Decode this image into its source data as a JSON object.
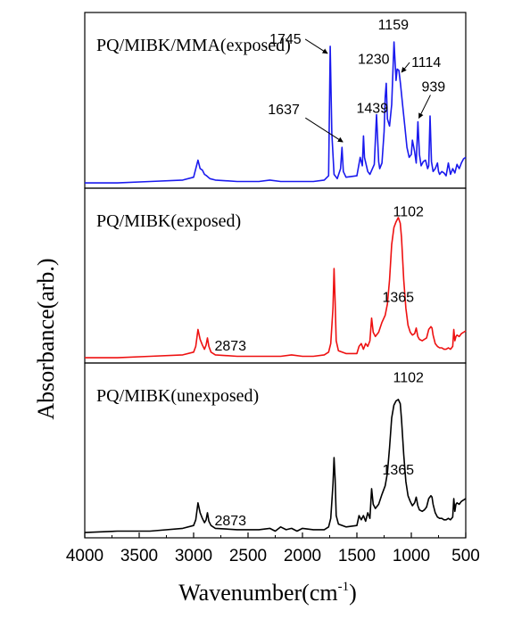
{
  "chart_data": {
    "type": "line",
    "xlabel": "Wavenumber(cm",
    "xlabel_sup": "-1",
    "xlabel_end": ")",
    "ylabel": "Absorbance(arb.)",
    "xlim": [
      4000,
      500
    ],
    "x_reversed": true,
    "x_ticks": [
      4000,
      3500,
      3000,
      2500,
      2000,
      1500,
      1000,
      500
    ],
    "stacked": true,
    "grid": false,
    "panels": [
      {
        "label": "PQ/MIBK/MMA(exposed)",
        "color": "#1a1aee",
        "ylim": [
          0,
          1
        ],
        "x": [
          4000,
          3700,
          3400,
          3100,
          3000,
          2990,
          2960,
          2940,
          2920,
          2900,
          2880,
          2850,
          2800,
          2600,
          2400,
          2300,
          2200,
          2100,
          2000,
          1900,
          1800,
          1760,
          1745,
          1730,
          1710,
          1680,
          1650,
          1637,
          1625,
          1600,
          1500,
          1470,
          1450,
          1439,
          1430,
          1400,
          1380,
          1340,
          1320,
          1300,
          1290,
          1270,
          1250,
          1240,
          1230,
          1220,
          1200,
          1180,
          1159,
          1140,
          1130,
          1114,
          1100,
          1080,
          1060,
          1040,
          1020,
          1000,
          990,
          970,
          955,
          939,
          925,
          910,
          890,
          870,
          850,
          840,
          828,
          815,
          800,
          780,
          760,
          750,
          740,
          720,
          700,
          680,
          660,
          640,
          620,
          600,
          580,
          560,
          540,
          520,
          500
        ],
        "y": [
          0.0,
          0.0,
          0.01,
          0.02,
          0.04,
          0.07,
          0.16,
          0.1,
          0.09,
          0.06,
          0.05,
          0.03,
          0.02,
          0.01,
          0.01,
          0.02,
          0.01,
          0.01,
          0.01,
          0.01,
          0.02,
          0.05,
          0.96,
          0.35,
          0.06,
          0.03,
          0.1,
          0.25,
          0.08,
          0.04,
          0.05,
          0.18,
          0.12,
          0.33,
          0.18,
          0.08,
          0.06,
          0.13,
          0.48,
          0.15,
          0.1,
          0.14,
          0.36,
          0.6,
          0.7,
          0.45,
          0.4,
          0.55,
          0.99,
          0.72,
          0.8,
          0.79,
          0.7,
          0.55,
          0.4,
          0.25,
          0.18,
          0.2,
          0.3,
          0.22,
          0.14,
          0.43,
          0.2,
          0.12,
          0.15,
          0.16,
          0.1,
          0.12,
          0.47,
          0.15,
          0.08,
          0.1,
          0.14,
          0.08,
          0.06,
          0.08,
          0.07,
          0.05,
          0.14,
          0.06,
          0.1,
          0.07,
          0.13,
          0.1,
          0.14,
          0.17,
          0.18
        ]
      },
      {
        "label": "PQ/MIBK(exposed)",
        "color": "#ee1111",
        "ylim": [
          0,
          1
        ],
        "x": [
          4000,
          3700,
          3400,
          3100,
          3000,
          2980,
          2960,
          2940,
          2920,
          2900,
          2885,
          2873,
          2860,
          2840,
          2800,
          2600,
          2400,
          2300,
          2200,
          2100,
          2000,
          1900,
          1800,
          1760,
          1740,
          1720,
          1710,
          1700,
          1690,
          1670,
          1600,
          1500,
          1480,
          1460,
          1440,
          1420,
          1400,
          1380,
          1365,
          1350,
          1330,
          1300,
          1270,
          1240,
          1220,
          1200,
          1180,
          1160,
          1140,
          1120,
          1102,
          1090,
          1070,
          1050,
          1030,
          1010,
          990,
          970,
          955,
          940,
          925,
          900,
          880,
          860,
          840,
          820,
          810,
          800,
          780,
          760,
          740,
          720,
          700,
          680,
          660,
          640,
          620,
          610,
          600,
          590,
          580,
          560,
          540,
          520,
          500
        ],
        "y": [
          0.0,
          0.0,
          0.01,
          0.02,
          0.04,
          0.08,
          0.2,
          0.13,
          0.09,
          0.06,
          0.09,
          0.14,
          0.08,
          0.04,
          0.02,
          0.01,
          0.01,
          0.01,
          0.01,
          0.02,
          0.01,
          0.01,
          0.02,
          0.04,
          0.1,
          0.35,
          0.63,
          0.4,
          0.12,
          0.05,
          0.03,
          0.03,
          0.08,
          0.1,
          0.06,
          0.1,
          0.08,
          0.12,
          0.28,
          0.18,
          0.15,
          0.18,
          0.25,
          0.3,
          0.38,
          0.55,
          0.8,
          0.92,
          0.96,
          0.99,
          0.95,
          0.85,
          0.55,
          0.35,
          0.23,
          0.18,
          0.16,
          0.17,
          0.21,
          0.15,
          0.13,
          0.12,
          0.13,
          0.14,
          0.2,
          0.22,
          0.21,
          0.16,
          0.1,
          0.08,
          0.07,
          0.07,
          0.06,
          0.06,
          0.07,
          0.06,
          0.08,
          0.2,
          0.12,
          0.15,
          0.16,
          0.15,
          0.17,
          0.18,
          0.19
        ]
      },
      {
        "label": "PQ/MIBK(unexposed)",
        "color": "#000000",
        "ylim": [
          0,
          1
        ],
        "x": [
          4000,
          3700,
          3400,
          3100,
          3000,
          2980,
          2960,
          2940,
          2920,
          2900,
          2885,
          2873,
          2860,
          2840,
          2800,
          2600,
          2400,
          2300,
          2250,
          2200,
          2150,
          2100,
          2050,
          2000,
          1900,
          1800,
          1760,
          1740,
          1720,
          1710,
          1700,
          1690,
          1670,
          1600,
          1500,
          1480,
          1460,
          1440,
          1420,
          1400,
          1380,
          1365,
          1350,
          1330,
          1300,
          1270,
          1240,
          1220,
          1200,
          1180,
          1160,
          1140,
          1120,
          1102,
          1090,
          1070,
          1050,
          1030,
          1010,
          990,
          970,
          955,
          940,
          925,
          900,
          880,
          860,
          840,
          820,
          810,
          800,
          780,
          760,
          740,
          720,
          700,
          680,
          660,
          640,
          620,
          610,
          600,
          590,
          580,
          560,
          540,
          520,
          500
        ],
        "y": [
          0.0,
          0.01,
          0.01,
          0.03,
          0.05,
          0.09,
          0.21,
          0.14,
          0.1,
          0.07,
          0.09,
          0.14,
          0.08,
          0.05,
          0.03,
          0.02,
          0.02,
          0.03,
          0.01,
          0.04,
          0.02,
          0.03,
          0.01,
          0.03,
          0.02,
          0.02,
          0.04,
          0.1,
          0.34,
          0.53,
          0.38,
          0.12,
          0.06,
          0.04,
          0.05,
          0.12,
          0.09,
          0.12,
          0.08,
          0.14,
          0.1,
          0.31,
          0.2,
          0.17,
          0.2,
          0.27,
          0.33,
          0.42,
          0.6,
          0.81,
          0.9,
          0.93,
          0.94,
          0.91,
          0.8,
          0.55,
          0.36,
          0.26,
          0.22,
          0.19,
          0.21,
          0.25,
          0.19,
          0.16,
          0.15,
          0.16,
          0.18,
          0.24,
          0.26,
          0.25,
          0.2,
          0.14,
          0.11,
          0.1,
          0.1,
          0.09,
          0.09,
          0.1,
          0.09,
          0.11,
          0.24,
          0.15,
          0.2,
          0.21,
          0.2,
          0.22,
          0.23,
          0.24
        ]
      }
    ],
    "annotations": [
      {
        "panel": 0,
        "text": "1745",
        "peak_x": 1745
      },
      {
        "panel": 0,
        "text": "1637",
        "peak_x": 1637
      },
      {
        "panel": 0,
        "text": "1439",
        "peak_x": 1439
      },
      {
        "panel": 0,
        "text": "1230",
        "peak_x": 1230
      },
      {
        "panel": 0,
        "text": "1159",
        "peak_x": 1159
      },
      {
        "panel": 0,
        "text": "1114",
        "peak_x": 1114
      },
      {
        "panel": 0,
        "text": "939",
        "peak_x": 939
      },
      {
        "panel": 1,
        "text": "2873",
        "peak_x": 2873
      },
      {
        "panel": 1,
        "text": "1365",
        "peak_x": 1365
      },
      {
        "panel": 1,
        "text": "1102",
        "peak_x": 1102
      },
      {
        "panel": 2,
        "text": "2873",
        "peak_x": 2873
      },
      {
        "panel": 2,
        "text": "1365",
        "peak_x": 1365
      },
      {
        "panel": 2,
        "text": "1102",
        "peak_x": 1102
      }
    ]
  }
}
